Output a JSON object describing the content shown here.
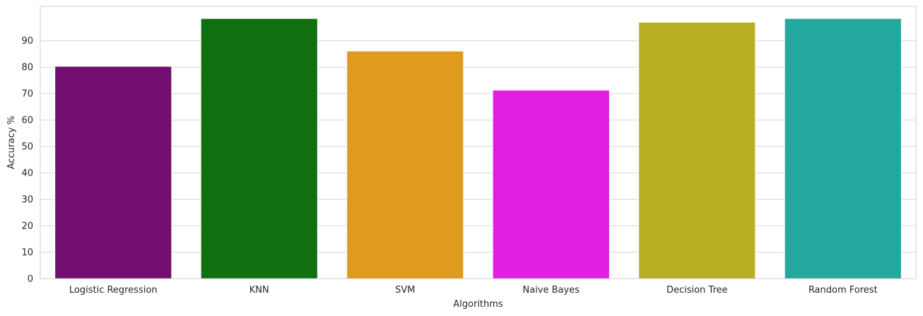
{
  "chart_data": {
    "type": "bar",
    "title": "",
    "xlabel": "Algorithms",
    "ylabel": "Accuracy %",
    "categories": [
      "Logistic Regression",
      "KNN",
      "SVM",
      "Naive Bayes",
      "Decision Tree",
      "Random Forest"
    ],
    "values": [
      80.3,
      98.4,
      86.1,
      71.3,
      97.0,
      98.4
    ],
    "colors": [
      "#720e6e",
      "#107010",
      "#e09b1f",
      "#e01fe0",
      "#b7b024",
      "#24a79e"
    ],
    "ylim": [
      0,
      103
    ],
    "yticks": [
      0,
      10,
      20,
      30,
      40,
      50,
      60,
      70,
      80,
      90
    ],
    "grid": true,
    "grid_axis": "y",
    "legend": "none"
  }
}
